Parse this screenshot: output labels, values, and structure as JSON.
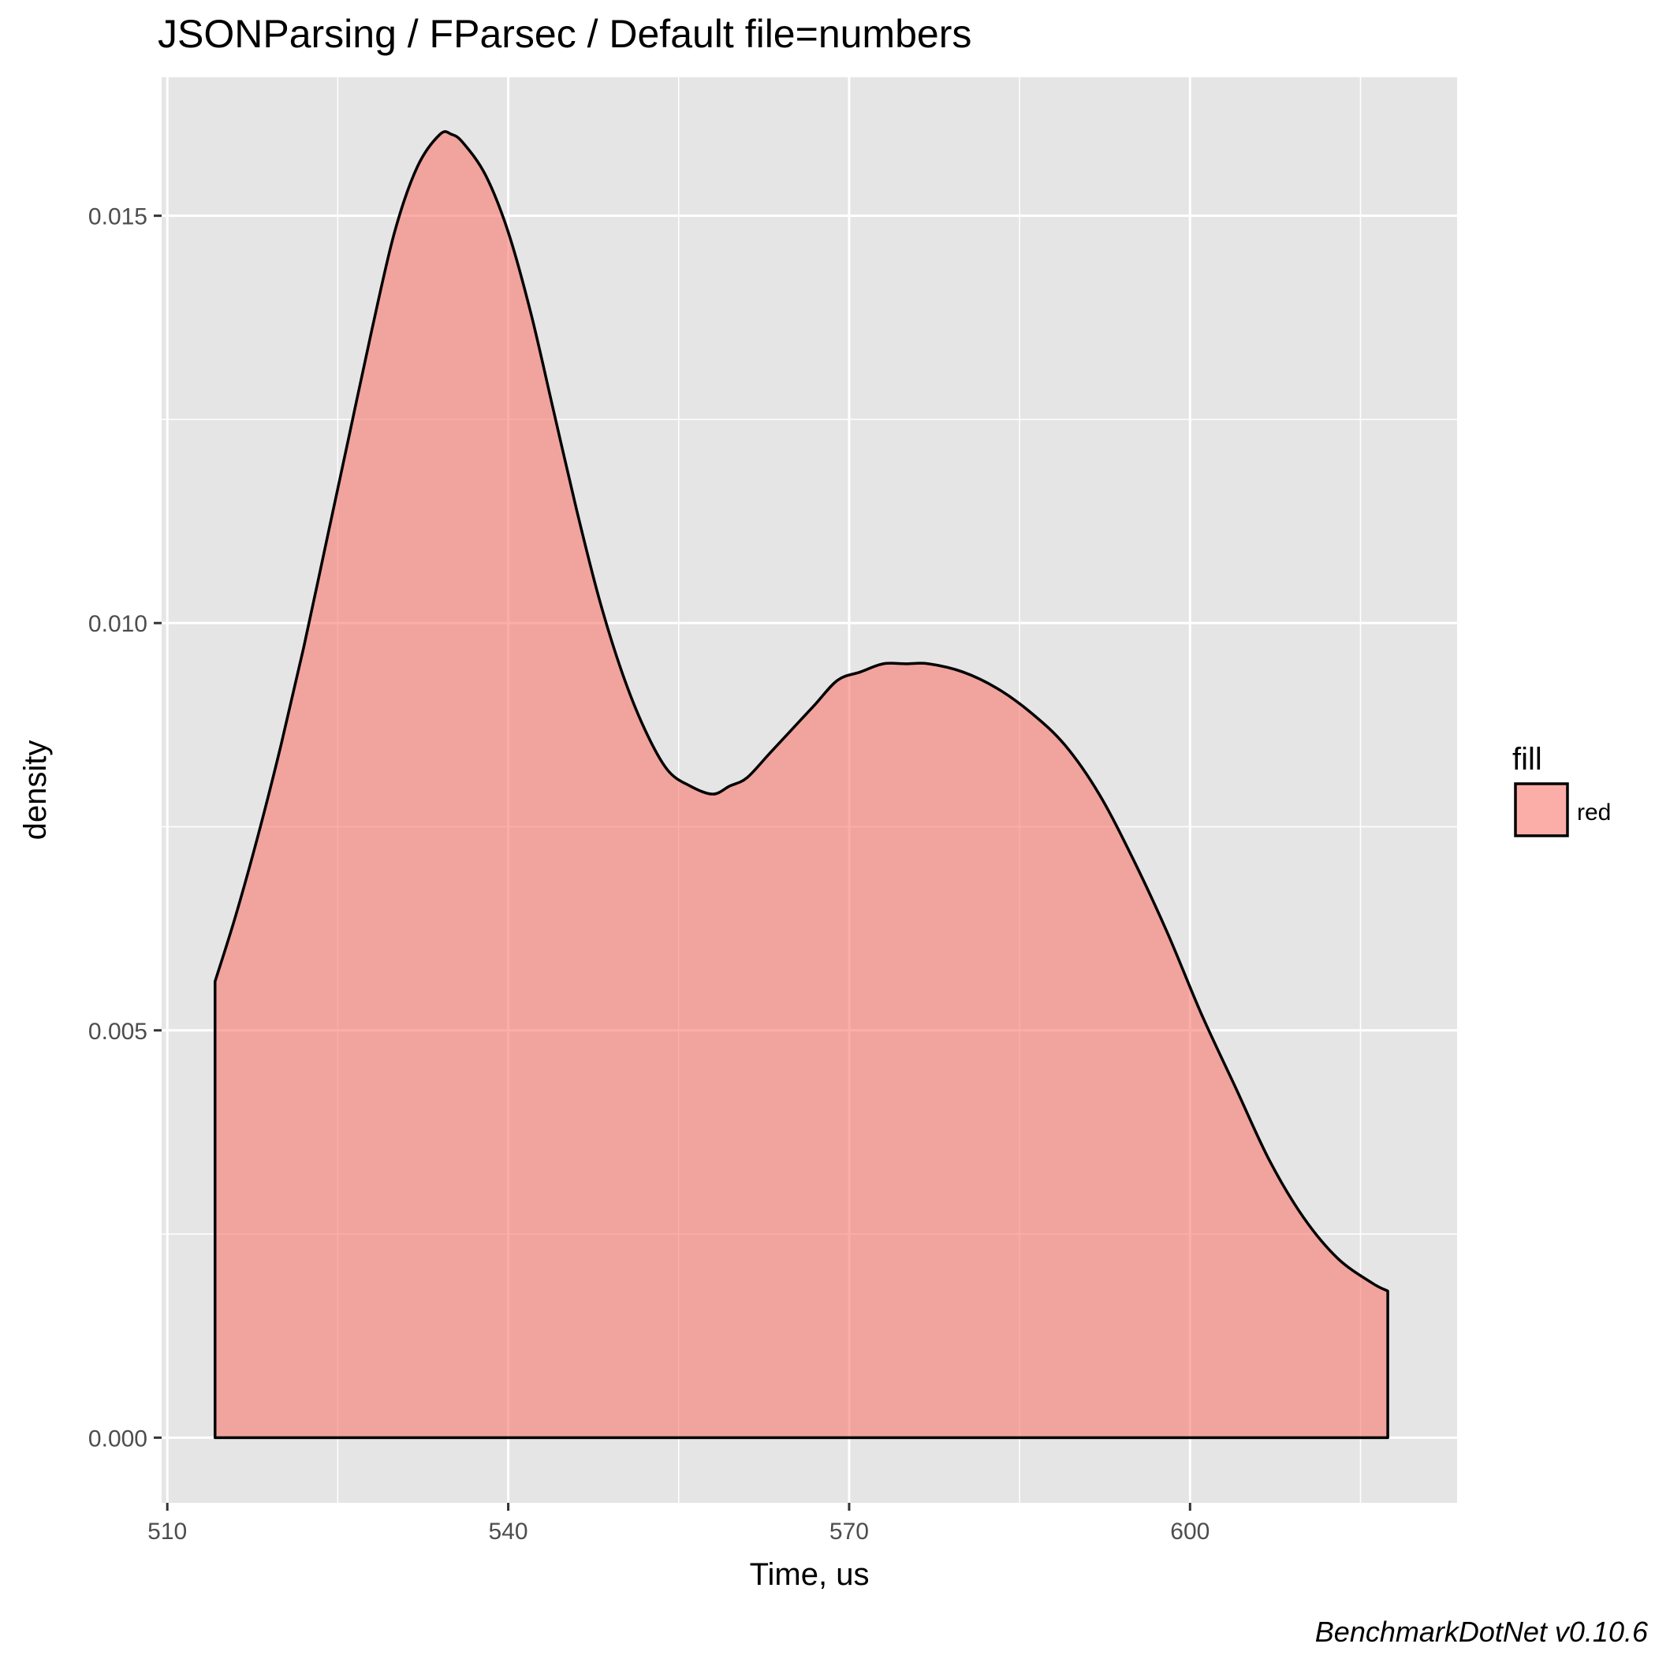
{
  "chart_data": {
    "type": "area",
    "title": "JSONParsing / FParsec / Default file=numbers",
    "xlabel": "Time, us",
    "ylabel": "density",
    "caption": "BenchmarkDotNet v0.10.6",
    "xlim": [
      509.5,
      623.5
    ],
    "ylim": [
      -0.0008,
      0.0167
    ],
    "x_ticks": [
      510,
      540,
      570,
      600
    ],
    "x_tick_labels": [
      "510",
      "540",
      "570",
      "600"
    ],
    "y_ticks": [
      0.0,
      0.005,
      0.01,
      0.015
    ],
    "y_tick_labels": [
      "0.000",
      "0.005",
      "0.010",
      "0.015"
    ],
    "grid": true,
    "legend": {
      "title": "fill",
      "position": "right",
      "entries": [
        {
          "label": "red",
          "color": "#f8766d"
        }
      ]
    },
    "colors": {
      "panel": "#e5e5e5",
      "grid": "#ffffff",
      "fill": "#f8766d",
      "outline": "#000000"
    },
    "series": [
      {
        "x": [
          514.2,
          516,
          518,
          520,
          522,
          524,
          526,
          528,
          530,
          532,
          534,
          535,
          536,
          538,
          540,
          542,
          544,
          546,
          548,
          550,
          552,
          554,
          556,
          558,
          559.5,
          561,
          563,
          565,
          567,
          569,
          571,
          573,
          575,
          577,
          580,
          583,
          586,
          589,
          592,
          595,
          598,
          601,
          604,
          607,
          610,
          613,
          616,
          617.4
        ],
        "y": [
          0.0056,
          0.0064,
          0.0074,
          0.0085,
          0.0097,
          0.011,
          0.0123,
          0.0136,
          0.0148,
          0.0156,
          0.016,
          0.016,
          0.0159,
          0.0155,
          0.0148,
          0.0138,
          0.0126,
          0.0114,
          0.0103,
          0.0094,
          0.0087,
          0.0082,
          0.008,
          0.0079,
          0.008,
          0.0081,
          0.0084,
          0.0087,
          0.009,
          0.0093,
          0.0094,
          0.0095,
          0.0095,
          0.0095,
          0.0094,
          0.0092,
          0.0089,
          0.0085,
          0.0079,
          0.0071,
          0.0062,
          0.0052,
          0.0043,
          0.0034,
          0.0027,
          0.0022,
          0.0019,
          0.0018
        ]
      }
    ]
  }
}
